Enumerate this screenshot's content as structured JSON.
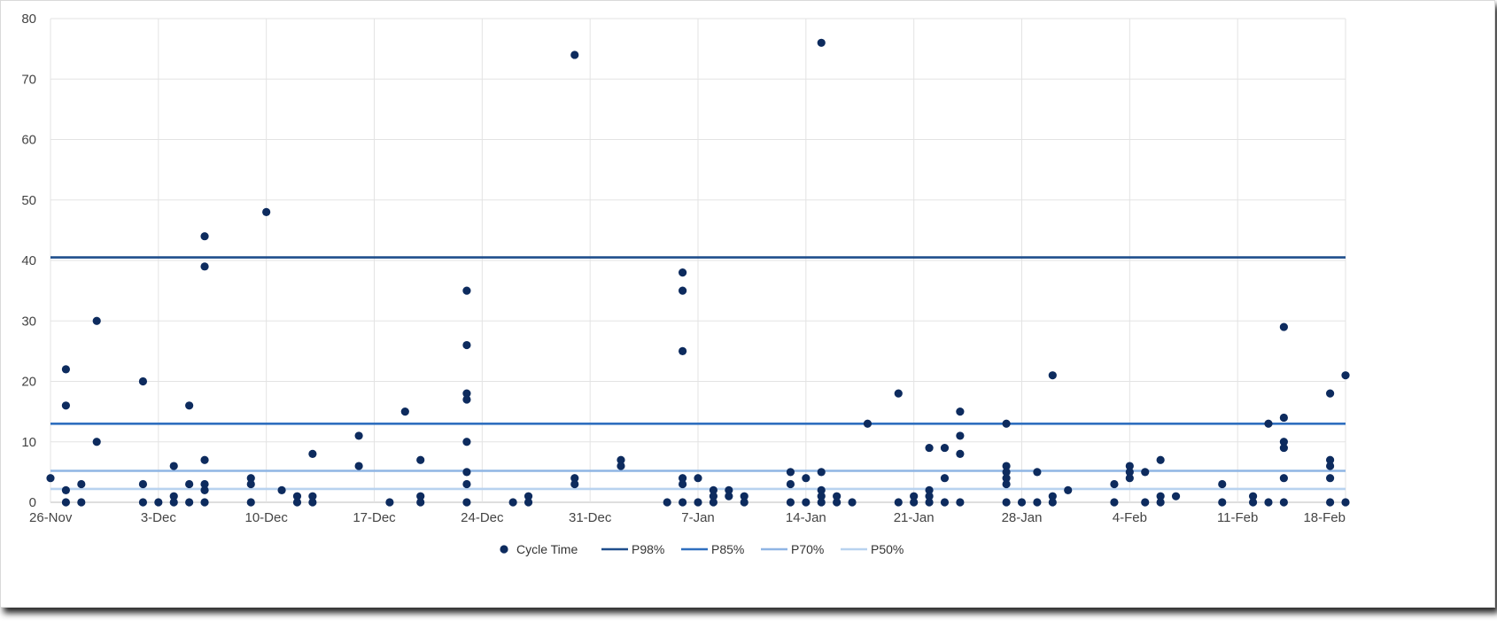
{
  "chart_data": {
    "type": "scatter",
    "title": "",
    "xlabel": "",
    "ylabel": "",
    "ylim": [
      0,
      80
    ],
    "yticks": [
      0,
      10,
      20,
      30,
      40,
      50,
      60,
      70,
      80
    ],
    "xlim": [
      "2018-11-26",
      "2019-02-18"
    ],
    "xticks": [
      {
        "date": "2018-11-26",
        "label": "26-Nov"
      },
      {
        "date": "2018-12-03",
        "label": "3-Dec"
      },
      {
        "date": "2018-12-10",
        "label": "10-Dec"
      },
      {
        "date": "2018-12-17",
        "label": "17-Dec"
      },
      {
        "date": "2018-12-24",
        "label": "24-Dec"
      },
      {
        "date": "2018-12-31",
        "label": "31-Dec"
      },
      {
        "date": "2019-01-07",
        "label": "7-Jan"
      },
      {
        "date": "2019-01-14",
        "label": "14-Jan"
      },
      {
        "date": "2019-01-21",
        "label": "21-Jan"
      },
      {
        "date": "2019-01-28",
        "label": "28-Jan"
      },
      {
        "date": "2019-02-04",
        "label": "4-Feb"
      },
      {
        "date": "2019-02-11",
        "label": "11-Feb"
      },
      {
        "date": "2019-02-18",
        "label": "18-Feb"
      }
    ],
    "grid": true,
    "legend_position": "bottom",
    "series": [
      {
        "name": "Cycle Time",
        "color": "#0d2b5e",
        "points": [
          [
            "2018-11-26",
            4
          ],
          [
            "2018-11-27",
            22
          ],
          [
            "2018-11-27",
            16
          ],
          [
            "2018-11-27",
            2
          ],
          [
            "2018-11-27",
            0
          ],
          [
            "2018-11-28",
            3
          ],
          [
            "2018-11-28",
            0
          ],
          [
            "2018-11-29",
            30
          ],
          [
            "2018-11-29",
            10
          ],
          [
            "2018-12-02",
            20
          ],
          [
            "2018-12-02",
            3
          ],
          [
            "2018-12-02",
            0
          ],
          [
            "2018-12-03",
            0
          ],
          [
            "2018-12-04",
            6
          ],
          [
            "2018-12-04",
            1
          ],
          [
            "2018-12-04",
            0
          ],
          [
            "2018-12-05",
            16
          ],
          [
            "2018-12-05",
            3
          ],
          [
            "2018-12-05",
            0
          ],
          [
            "2018-12-06",
            44
          ],
          [
            "2018-12-06",
            39
          ],
          [
            "2018-12-06",
            7
          ],
          [
            "2018-12-06",
            3
          ],
          [
            "2018-12-06",
            2
          ],
          [
            "2018-12-06",
            0
          ],
          [
            "2018-12-09",
            4
          ],
          [
            "2018-12-09",
            3
          ],
          [
            "2018-12-09",
            0
          ],
          [
            "2018-12-10",
            48
          ],
          [
            "2018-12-11",
            2
          ],
          [
            "2018-12-12",
            1
          ],
          [
            "2018-12-12",
            0
          ],
          [
            "2018-12-13",
            8
          ],
          [
            "2018-12-13",
            1
          ],
          [
            "2018-12-13",
            0
          ],
          [
            "2018-12-16",
            11
          ],
          [
            "2018-12-16",
            6
          ],
          [
            "2018-12-18",
            0
          ],
          [
            "2018-12-19",
            15
          ],
          [
            "2018-12-20",
            7
          ],
          [
            "2018-12-20",
            1
          ],
          [
            "2018-12-20",
            0
          ],
          [
            "2018-12-23",
            35
          ],
          [
            "2018-12-23",
            26
          ],
          [
            "2018-12-23",
            18
          ],
          [
            "2018-12-23",
            17
          ],
          [
            "2018-12-23",
            10
          ],
          [
            "2018-12-23",
            5
          ],
          [
            "2018-12-23",
            3
          ],
          [
            "2018-12-23",
            0
          ],
          [
            "2018-12-26",
            0
          ],
          [
            "2018-12-27",
            1
          ],
          [
            "2018-12-27",
            0
          ],
          [
            "2018-12-30",
            74
          ],
          [
            "2018-12-30",
            4
          ],
          [
            "2018-12-30",
            3
          ],
          [
            "2019-01-02",
            7
          ],
          [
            "2019-01-02",
            6
          ],
          [
            "2019-01-05",
            0
          ],
          [
            "2019-01-06",
            38
          ],
          [
            "2019-01-06",
            35
          ],
          [
            "2019-01-06",
            25
          ],
          [
            "2019-01-06",
            4
          ],
          [
            "2019-01-06",
            3
          ],
          [
            "2019-01-06",
            0
          ],
          [
            "2019-01-07",
            4
          ],
          [
            "2019-01-07",
            0
          ],
          [
            "2019-01-08",
            2
          ],
          [
            "2019-01-08",
            1
          ],
          [
            "2019-01-08",
            0
          ],
          [
            "2019-01-09",
            2
          ],
          [
            "2019-01-09",
            1
          ],
          [
            "2019-01-10",
            1
          ],
          [
            "2019-01-10",
            0
          ],
          [
            "2019-01-13",
            5
          ],
          [
            "2019-01-13",
            3
          ],
          [
            "2019-01-13",
            0
          ],
          [
            "2019-01-14",
            4
          ],
          [
            "2019-01-14",
            0
          ],
          [
            "2019-01-15",
            76
          ],
          [
            "2019-01-15",
            5
          ],
          [
            "2019-01-15",
            2
          ],
          [
            "2019-01-15",
            1
          ],
          [
            "2019-01-15",
            0
          ],
          [
            "2019-01-16",
            1
          ],
          [
            "2019-01-16",
            0
          ],
          [
            "2019-01-17",
            0
          ],
          [
            "2019-01-18",
            13
          ],
          [
            "2019-01-20",
            18
          ],
          [
            "2019-01-20",
            0
          ],
          [
            "2019-01-21",
            1
          ],
          [
            "2019-01-21",
            0
          ],
          [
            "2019-01-22",
            9
          ],
          [
            "2019-01-22",
            2
          ],
          [
            "2019-01-22",
            1
          ],
          [
            "2019-01-22",
            0
          ],
          [
            "2019-01-23",
            9
          ],
          [
            "2019-01-23",
            4
          ],
          [
            "2019-01-23",
            0
          ],
          [
            "2019-01-24",
            15
          ],
          [
            "2019-01-24",
            11
          ],
          [
            "2019-01-24",
            8
          ],
          [
            "2019-01-24",
            0
          ],
          [
            "2019-01-27",
            13
          ],
          [
            "2019-01-27",
            6
          ],
          [
            "2019-01-27",
            5
          ],
          [
            "2019-01-27",
            4
          ],
          [
            "2019-01-27",
            3
          ],
          [
            "2019-01-27",
            0
          ],
          [
            "2019-01-28",
            0
          ],
          [
            "2019-01-29",
            5
          ],
          [
            "2019-01-29",
            0
          ],
          [
            "2019-01-30",
            21
          ],
          [
            "2019-01-30",
            1
          ],
          [
            "2019-01-30",
            0
          ],
          [
            "2019-01-31",
            2
          ],
          [
            "2019-02-03",
            3
          ],
          [
            "2019-02-03",
            0
          ],
          [
            "2019-02-04",
            6
          ],
          [
            "2019-02-04",
            5
          ],
          [
            "2019-02-04",
            4
          ],
          [
            "2019-02-05",
            5
          ],
          [
            "2019-02-05",
            0
          ],
          [
            "2019-02-06",
            7
          ],
          [
            "2019-02-06",
            1
          ],
          [
            "2019-02-06",
            0
          ],
          [
            "2019-02-07",
            1
          ],
          [
            "2019-02-10",
            3
          ],
          [
            "2019-02-10",
            0
          ],
          [
            "2019-02-12",
            1
          ],
          [
            "2019-02-12",
            0
          ],
          [
            "2019-02-13",
            13
          ],
          [
            "2019-02-13",
            0
          ],
          [
            "2019-02-14",
            29
          ],
          [
            "2019-02-14",
            14
          ],
          [
            "2019-02-14",
            10
          ],
          [
            "2019-02-14",
            9
          ],
          [
            "2019-02-14",
            4
          ],
          [
            "2019-02-14",
            0
          ],
          [
            "2019-02-17",
            18
          ],
          [
            "2019-02-17",
            7
          ],
          [
            "2019-02-17",
            6
          ],
          [
            "2019-02-17",
            4
          ],
          [
            "2019-02-17",
            0
          ],
          [
            "2019-02-18",
            21
          ],
          [
            "2019-02-18",
            0
          ]
        ]
      }
    ],
    "reference_lines": [
      {
        "name": "P98%",
        "value": 40.5,
        "color": "#1f4e8c"
      },
      {
        "name": "P85%",
        "value": 13,
        "color": "#2f6fbf"
      },
      {
        "name": "P70%",
        "value": 5.2,
        "color": "#8fb5e4"
      },
      {
        "name": "P50%",
        "value": 2.2,
        "color": "#b8d2ef"
      }
    ]
  }
}
